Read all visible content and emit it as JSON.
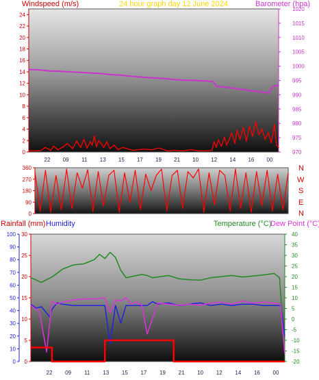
{
  "header": {
    "left_label": "Windspeed (m/s)",
    "title": "24 hour graph day   12 June 2024",
    "right_label": "Barometer (hpa)"
  },
  "lower_header": {
    "rainfall_label": "Rainfall (mm)",
    "humidity_label": "Humidity",
    "temperature_label": "Temperature (°C)",
    "dewpoint_label": "Dew Point (°C)"
  },
  "compass_letters": [
    "N",
    "W",
    "S",
    "E",
    "N"
  ],
  "colors": {
    "windspeed": "#ff0000",
    "barometer": "#cc33cc",
    "title": "#ffd700",
    "direction": "#ff0000",
    "rainfall": "#ff0000",
    "humidity": "#2222dd",
    "temperature": "#228822",
    "dewpoint": "#dd33dd",
    "axis_red": "#cc0000",
    "axis_magenta": "#cc33cc",
    "axis_blue": "#2222dd",
    "axis_green": "#228822"
  },
  "chart_data": [
    {
      "type": "line",
      "name": "wind-barometer",
      "x_tick_labels": [
        "22",
        "09",
        "11",
        "13",
        "15",
        "17",
        "19",
        "21",
        "10",
        "12",
        "14",
        "16",
        "00"
      ],
      "y_left": {
        "label": "Windspeed (m/s)",
        "ticks": [
          0,
          2,
          4,
          6,
          8,
          10,
          12,
          14,
          16,
          18,
          20,
          22,
          24
        ],
        "range": [
          0,
          25
        ]
      },
      "y_right": {
        "label": "Barometer (hpa)",
        "ticks": [
          970,
          975,
          980,
          985,
          990,
          995,
          1000,
          1005,
          1010,
          1015,
          1020
        ],
        "range": [
          970,
          1020
        ]
      },
      "series": [
        {
          "name": "Barometer (hpa)",
          "axis": "right",
          "x": [
            0,
            1,
            2,
            3,
            4,
            5,
            6,
            7,
            8,
            9,
            10,
            11,
            12,
            13,
            14,
            15,
            16,
            17,
            17.7,
            18,
            19,
            20,
            21,
            22,
            23,
            23.5,
            24
          ],
          "y": [
            998.8,
            998.7,
            998.3,
            998.2,
            998.0,
            997.8,
            997.6,
            997.4,
            997.0,
            996.8,
            996.4,
            996.1,
            995.9,
            995.7,
            995.3,
            995.1,
            995.0,
            994.8,
            994.6,
            993.0,
            992.6,
            992.1,
            991.6,
            991.1,
            990.6,
            993.0,
            993.3
          ]
        },
        {
          "name": "Windspeed (m/s)",
          "axis": "left",
          "x": [
            0,
            1.1,
            1.6,
            2.1,
            2.4,
            2.8,
            3.3,
            3.7,
            4.2,
            4.6,
            5.0,
            5.3,
            5.6,
            5.9,
            6.1,
            6.3,
            6.5,
            6.7,
            7.0,
            7.2,
            7.5,
            7.8,
            8.2,
            8.6,
            9.0,
            10.0,
            11.0,
            11.8,
            12.5,
            13.3,
            14.0,
            14.8,
            15.6,
            16.3,
            17.0,
            17.6,
            17.8,
            18.0,
            18.2,
            18.5,
            18.8,
            19.0,
            19.2,
            19.5,
            19.8,
            20.0,
            20.3,
            20.6,
            20.9,
            21.2,
            21.5,
            21.8,
            22.1,
            22.4,
            22.7,
            23.0,
            23.3,
            23.6,
            23.8,
            24.0
          ],
          "y": [
            0.2,
            0.2,
            0.8,
            0.3,
            1.0,
            0.4,
            0.9,
            1.5,
            0.6,
            1.9,
            0.8,
            2.2,
            0.7,
            1.8,
            1.2,
            2.8,
            0.9,
            2.0,
            1.4,
            0.8,
            1.8,
            0.6,
            1.2,
            0.4,
            0.8,
            0.3,
            0.5,
            0.4,
            0.7,
            0.2,
            0.3,
            0.2,
            0.4,
            0.2,
            0.2,
            0.3,
            1.8,
            0.8,
            2.1,
            1.0,
            2.6,
            1.2,
            2.0,
            3.3,
            1.5,
            3.8,
            2.2,
            4.3,
            1.9,
            4.5,
            2.8,
            5.3,
            3.0,
            4.0,
            2.2,
            3.4,
            1.6,
            4.8,
            1.2,
            0.8
          ]
        }
      ]
    },
    {
      "type": "line",
      "name": "wind-direction",
      "y_ticks": [
        0,
        90,
        180,
        270,
        360
      ],
      "range": [
        0,
        360
      ],
      "series": [
        {
          "name": "Wind direction",
          "x": [
            0,
            0.5,
            1.0,
            1.5,
            2.0,
            2.5,
            3.0,
            3.5,
            4.0,
            4.5,
            5.0,
            5.5,
            6.0,
            6.5,
            7.0,
            7.5,
            8.0,
            8.5,
            9.0,
            9.5,
            10.0,
            10.5,
            11.0,
            11.5,
            12.0,
            12.5,
            13.0,
            13.5,
            14.0,
            14.5,
            15.0,
            15.5,
            16.0,
            16.5,
            17.0,
            17.5,
            18.0,
            18.5,
            19.0,
            19.5,
            20.0,
            20.5,
            21.0,
            21.5,
            22.0,
            22.5,
            23.0,
            23.5,
            24.0
          ],
          "y": [
            330,
            20,
            340,
            10,
            300,
            30,
            350,
            40,
            320,
            200,
            345,
            15,
            330,
            60,
            300,
            340,
            10,
            320,
            90,
            340,
            30,
            310,
            180,
            300,
            350,
            20,
            300,
            340,
            40,
            330,
            280,
            350,
            10,
            320,
            70,
            340,
            300,
            20,
            350,
            40,
            320,
            10,
            330,
            60,
            340,
            20,
            310,
            30,
            320
          ]
        }
      ]
    },
    {
      "type": "line",
      "name": "rain-humidity-temperature",
      "x_tick_labels": [
        "22",
        "09",
        "11",
        "13",
        "15",
        "17",
        "19",
        "21",
        "10",
        "12",
        "14",
        "16",
        "00"
      ],
      "y_humidity": {
        "label": "Humidity",
        "ticks": [
          0,
          10,
          20,
          30,
          40,
          50,
          60,
          70,
          80,
          90,
          100
        ],
        "range": [
          0,
          100
        ]
      },
      "y_rainfall": {
        "label": "Rainfall (mm)",
        "ticks": [
          0,
          5,
          10,
          15,
          20,
          25,
          30
        ],
        "range": [
          0,
          30
        ]
      },
      "y_temperature": {
        "label": "Temperature (°C)",
        "ticks": [
          -20,
          -15,
          -10,
          -5,
          0,
          5,
          10,
          15,
          20,
          25,
          30,
          35,
          40
        ],
        "range": [
          -20,
          40
        ]
      },
      "series": [
        {
          "name": "Temperature (°C)",
          "axis": "temperature",
          "x": [
            0,
            1.0,
            2.0,
            3.0,
            4.0,
            5.0,
            6.0,
            6.5,
            7.0,
            7.5,
            8.0,
            8.5,
            9.0,
            9.5,
            10.0,
            10.5,
            11.0,
            11.5,
            12.0,
            13.0,
            14.0,
            15.0,
            16.0,
            17.0,
            18.0,
            19.0,
            20.0,
            21.0,
            22.0,
            23.0,
            23.5,
            24.0
          ],
          "y": [
            19.5,
            17.3,
            19.8,
            23.5,
            25.5,
            26.0,
            28.0,
            30.5,
            28.5,
            31.5,
            29.0,
            23.0,
            19.5,
            20.0,
            20.5,
            21.0,
            20.5,
            19.5,
            19.8,
            20.5,
            19.0,
            18.5,
            18.3,
            19.5,
            20.0,
            20.5,
            19.8,
            20.3,
            20.8,
            21.5,
            19.5,
            -16.0
          ]
        },
        {
          "name": "Dew Point (°C)",
          "axis": "temperature",
          "x": [
            0,
            0.8,
            1.5,
            2.0,
            2.5,
            3.0,
            4.0,
            5.0,
            6.0,
            7.0,
            7.5,
            8.0,
            8.5,
            9.0,
            9.5,
            10.0,
            10.5,
            11.0,
            12.0,
            13.0,
            14.0,
            15.0,
            16.0,
            17.0,
            18.0,
            19.0,
            20.0,
            21.0,
            22.0,
            23.0,
            23.6,
            24.0
          ],
          "y": [
            6.5,
            3.5,
            -15.5,
            8.5,
            7.0,
            8.0,
            9.0,
            9.5,
            9.5,
            10.0,
            3.0,
            9.0,
            8.5,
            10.0,
            7.0,
            8.0,
            6.5,
            -7.0,
            7.5,
            7.0,
            6.5,
            7.0,
            6.5,
            7.5,
            8.0,
            7.0,
            8.5,
            7.5,
            8.0,
            7.5,
            7.0,
            -16.5
          ]
        },
        {
          "name": "Humidity",
          "axis": "humidity",
          "x": [
            0,
            0.5,
            1.0,
            1.5,
            1.8,
            2.0,
            2.5,
            3.0,
            4.0,
            5.0,
            6.0,
            7.0,
            7.5,
            8.0,
            8.5,
            9.0,
            10.0,
            11.0,
            11.5,
            12.0,
            13.0,
            14.0,
            15.0,
            16.0,
            17.0,
            18.0,
            19.0,
            20.0,
            21.0,
            22.0,
            23.0,
            23.6,
            24.0
          ],
          "y": [
            45,
            42,
            43,
            38,
            35,
            41,
            46,
            45,
            44,
            44,
            44,
            44,
            14,
            44,
            30,
            44,
            44,
            44,
            47,
            45,
            46,
            44,
            45,
            46,
            44,
            45,
            44,
            45,
            45,
            44,
            44,
            44,
            20
          ]
        },
        {
          "name": "Rainfall (mm)",
          "axis": "rainfall",
          "x": [
            0,
            2.0,
            2.0,
            6.3,
            6.3,
            7.0,
            7.0,
            13.5,
            13.5,
            24.0
          ],
          "y": [
            3.3,
            3.3,
            0,
            0,
            0,
            0,
            5.0,
            5.0,
            0,
            0
          ]
        }
      ]
    }
  ]
}
